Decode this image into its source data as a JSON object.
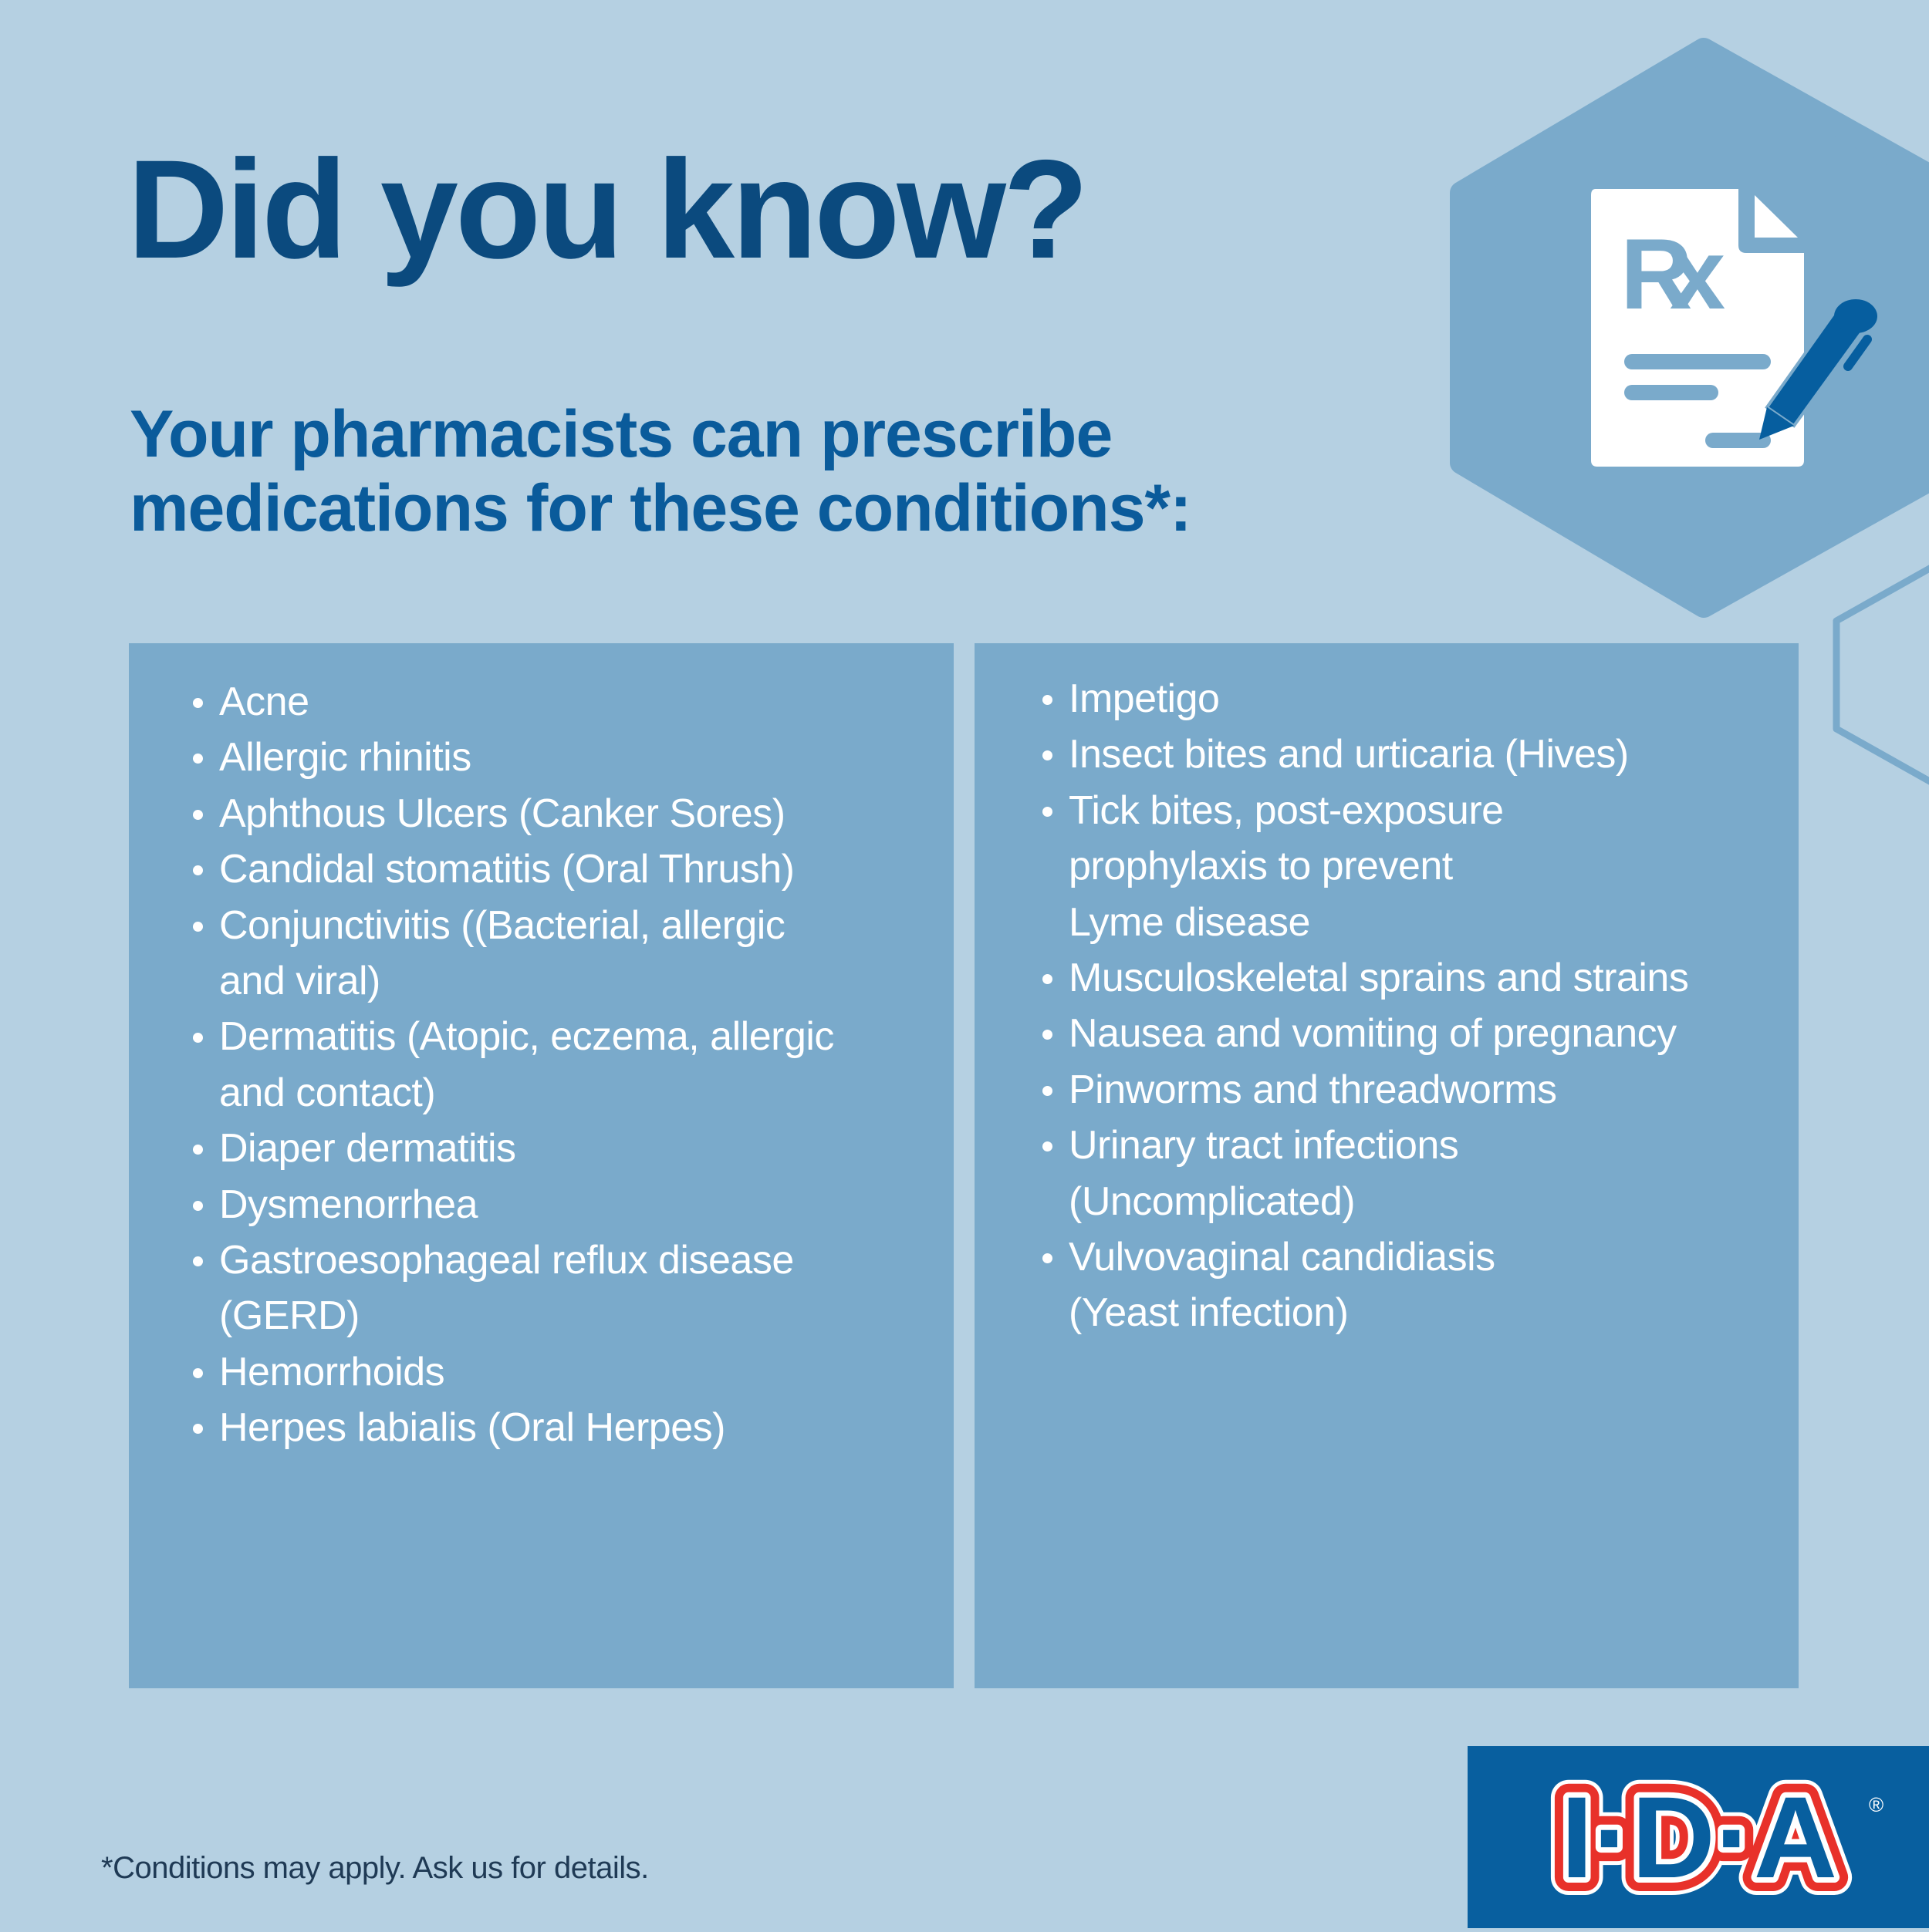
{
  "header": {
    "title": "Did you know?",
    "subtitle": "Your pharmacists can prescribe\nmedications for these conditions*:"
  },
  "conditions": {
    "left": [
      "Acne",
      "Allergic rhinitis",
      "Aphthous Ulcers (Canker Sores)",
      "Candidal stomatitis (Oral Thrush)",
      "Conjunctivitis ((Bacterial, allergic\nand viral)",
      "Dermatitis (Atopic, eczema, allergic\nand contact)",
      "Diaper dermatitis",
      "Dysmenorrhea",
      "Gastroesophageal reflux disease\n(GERD)",
      "Hemorrhoids",
      "Herpes labialis (Oral Herpes)"
    ],
    "right": [
      "Impetigo",
      "Insect bites and urticaria (Hives)",
      "Tick bites, post-exposure\nprophylaxis to prevent\nLyme disease",
      "Musculoskeletal sprains and strains",
      "Nausea and vomiting of pregnancy",
      "Pinworms and threadworms",
      "Urinary tract infections\n(Uncomplicated)",
      "Vulvovaginal candidiasis\n(Yeast infection)"
    ]
  },
  "footnote": "*Conditions may apply. Ask us for details.",
  "icon": {
    "name": "prescription-document-pen-icon",
    "label": "Rx"
  },
  "logo": {
    "text": "I·D·A",
    "registered": "®"
  },
  "colors": {
    "background": "#b5d0e2",
    "panel": "#7aaacb",
    "title": "#0b4a7e",
    "subtitle": "#0a5b9b",
    "logo_box": "#085f9f",
    "logo_red": "#e8312a",
    "pen": "#065e9f"
  }
}
